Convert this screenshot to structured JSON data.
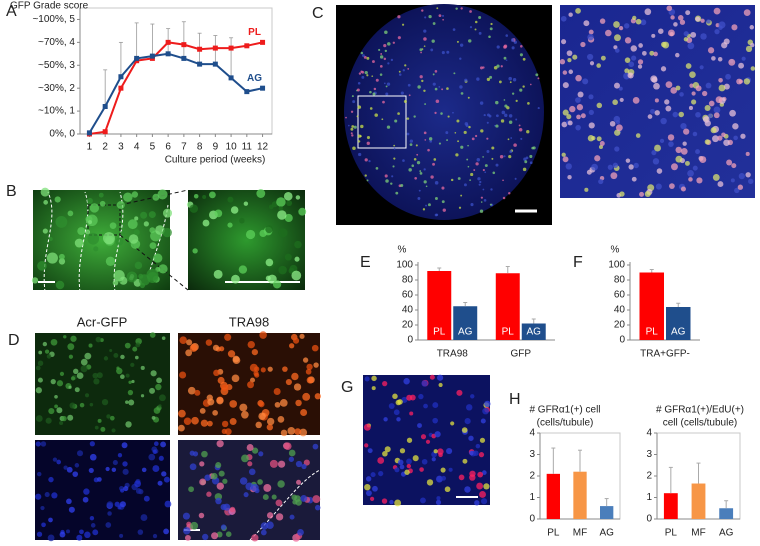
{
  "panels": {
    "letters": [
      "A",
      "B",
      "C",
      "D",
      "E",
      "F",
      "G",
      "H"
    ],
    "d_labels": [
      "Acr-GFP",
      "TRA98"
    ]
  },
  "chart_data": [
    {
      "type": "line",
      "title": "GFP Grade score",
      "x_label": "Culture period (weeks)",
      "x": [
        1,
        2,
        3,
        4,
        5,
        6,
        7,
        8,
        9,
        10,
        11,
        12
      ],
      "xlim": [
        0.4,
        12.6
      ],
      "xticks": [
        1,
        2,
        3,
        4,
        5,
        6,
        7,
        8,
        9,
        10,
        11,
        12
      ],
      "ylim": [
        0,
        5.5
      ],
      "yticks": [
        {
          "value": 0,
          "label": "0%, 0"
        },
        {
          "value": 1,
          "label": "~10%, 1"
        },
        {
          "value": 2,
          "label": "~30%, 2"
        },
        {
          "value": 3,
          "label": "~50%, 3"
        },
        {
          "value": 4,
          "label": "~70%, 4"
        },
        {
          "value": 5,
          "label": "~100%, 5"
        }
      ],
      "series": [
        {
          "name": "PL",
          "color": "#ee1c1c",
          "values": [
            0,
            0.1,
            2.0,
            3.2,
            3.3,
            4.0,
            3.9,
            3.7,
            3.75,
            3.75,
            3.85,
            4.0
          ]
        },
        {
          "name": "AG",
          "color": "#1f4e8c",
          "values": [
            0.05,
            1.2,
            2.5,
            3.3,
            3.4,
            3.5,
            3.3,
            3.05,
            3.05,
            2.45,
            1.85,
            2.0
          ],
          "errors": [
            0,
            1.6,
            1.5,
            1.55,
            1.4,
            1.1,
            1.6,
            1.35,
            1.25,
            1.75,
            0,
            0
          ]
        }
      ]
    },
    {
      "type": "bar",
      "y_label": "%",
      "categories": [
        "TRA98",
        "GFP"
      ],
      "ylim": [
        0,
        100
      ],
      "yticks": [
        0,
        20,
        40,
        60,
        80,
        100
      ],
      "series": [
        {
          "name": "PL",
          "color": "#ff0000",
          "values": [
            92,
            89
          ],
          "errors": [
            4,
            9
          ]
        },
        {
          "name": "AG",
          "color": "#1f4e8c",
          "values": [
            45,
            22
          ],
          "errors": [
            5,
            6
          ]
        }
      ]
    },
    {
      "type": "bar",
      "y_label": "%",
      "categories": [
        "TRA+GFP-"
      ],
      "ylim": [
        0,
        100
      ],
      "yticks": [
        0,
        20,
        40,
        60,
        80,
        100
      ],
      "series": [
        {
          "name": "PL",
          "color": "#ff0000",
          "values": [
            90
          ],
          "errors": [
            4
          ]
        },
        {
          "name": "AG",
          "color": "#1f4e8c",
          "values": [
            44
          ],
          "errors": [
            5
          ]
        }
      ]
    },
    {
      "type": "bar",
      "title": [
        "# GFRα1(+) cell",
        "(cells/tubule)"
      ],
      "categories": [
        "PL",
        "MF",
        "AG"
      ],
      "values": [
        2.1,
        2.2,
        0.6
      ],
      "errors": [
        1.2,
        1.0,
        0.35
      ],
      "colors": [
        "#ff0000",
        "#f79646",
        "#4a7ebb"
      ],
      "ylim": [
        0,
        4
      ],
      "yticks": [
        0,
        1,
        2,
        3,
        4
      ]
    },
    {
      "type": "bar",
      "title": [
        "# GFRα1(+)/EdU(+)",
        "cell (cells/tubule)"
      ],
      "categories": [
        "PL",
        "MF",
        "AG"
      ],
      "values": [
        1.2,
        1.65,
        0.5
      ],
      "errors": [
        1.2,
        0.95,
        0.35
      ],
      "colors": [
        "#ff0000",
        "#f79646",
        "#4a7ebb"
      ],
      "ylim": [
        0,
        4
      ],
      "yticks": [
        0,
        1,
        2,
        3,
        4
      ]
    }
  ]
}
